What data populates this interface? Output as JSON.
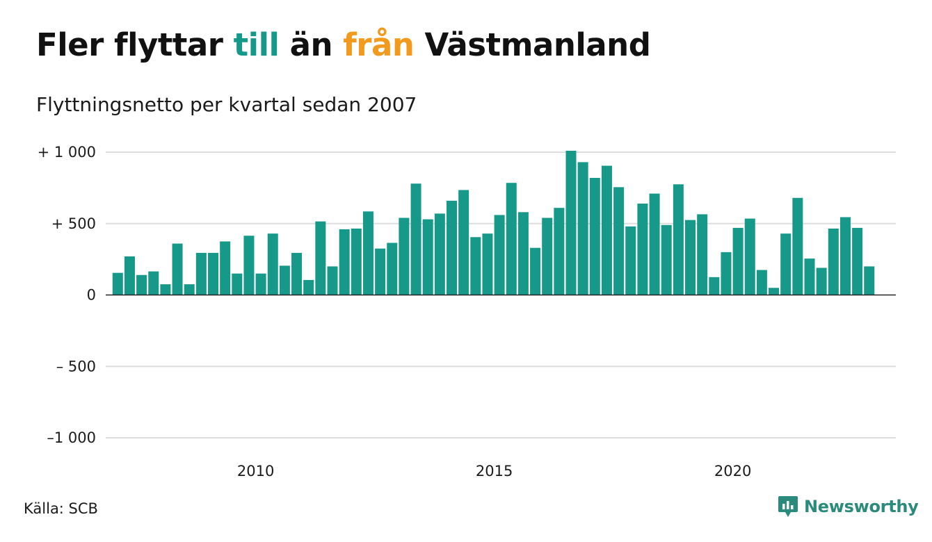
{
  "title": {
    "part1": "Fler flyttar ",
    "part2": "till",
    "part3": " än ",
    "part4": "från",
    "part5": " Västmanland"
  },
  "subtitle": "Flyttningsnetto per kvartal sedan 2007",
  "source": "Källa: SCB",
  "brand": "Newsworthy",
  "colors": {
    "bar": "#17998a",
    "accent_till": "#17998a",
    "accent_fran": "#f29a1d",
    "brand": "#2a8a7c",
    "grid": "#dddddd",
    "text": "#1a1a1a"
  },
  "chart_data": {
    "type": "bar",
    "x_start": "2007-Q1",
    "x_ticks": [
      {
        "value": 2010,
        "label": "2010"
      },
      {
        "value": 2015,
        "label": "2015"
      },
      {
        "value": 2020,
        "label": "2020"
      }
    ],
    "y_ticks": [
      {
        "value": 1000,
        "label": "+ 1 000"
      },
      {
        "value": 500,
        "label": "+   500"
      },
      {
        "value": 0,
        "label": "0"
      },
      {
        "value": -500,
        "label": "–  500"
      },
      {
        "value": -1000,
        "label": "–1 000"
      }
    ],
    "ylim": [
      -1000,
      1000
    ],
    "grid": true,
    "values": [
      155,
      270,
      140,
      165,
      75,
      360,
      75,
      295,
      295,
      375,
      150,
      415,
      150,
      430,
      205,
      295,
      105,
      515,
      200,
      460,
      465,
      585,
      325,
      365,
      540,
      780,
      530,
      570,
      660,
      735,
      405,
      430,
      560,
      785,
      580,
      330,
      540,
      610,
      1010,
      930,
      820,
      905,
      755,
      480,
      640,
      710,
      490,
      775,
      525,
      565,
      125,
      300,
      470,
      535,
      175,
      50,
      430,
      680,
      255,
      190,
      465,
      545,
      470,
      200
    ]
  }
}
